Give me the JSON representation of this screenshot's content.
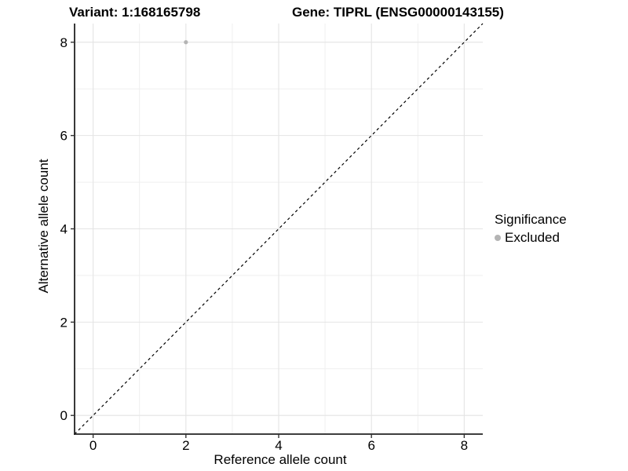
{
  "chart_data": {
    "type": "scatter",
    "title_left": "Variant: 1:168165798",
    "title_right": "Gene: TIPRL (ENSG00000143155)",
    "xlabel": "Reference allele count",
    "ylabel": "Alternative allele count",
    "xlim": [
      -0.4,
      8.4
    ],
    "ylim": [
      -0.4,
      8.4
    ],
    "x_breaks": [
      0,
      2,
      4,
      6,
      8
    ],
    "y_breaks": [
      0,
      2,
      4,
      6,
      8
    ],
    "x_minor_breaks": [
      1,
      3,
      5,
      7
    ],
    "y_minor_breaks": [
      1,
      3,
      5,
      7
    ],
    "grid": true,
    "points": [
      {
        "x": 2,
        "y": 8,
        "series": "Excluded"
      }
    ],
    "reference_line": {
      "kind": "identity",
      "slope": 1,
      "intercept": 0,
      "style": "dashed",
      "color": "#000000"
    },
    "legend": {
      "title": "Significance",
      "position": "right",
      "items": [
        {
          "label": "Excluded",
          "color": "#b4b4b4",
          "marker": "circle"
        }
      ]
    },
    "colors": {
      "point": "#b4b4b4",
      "grid_major": "#e4e4e4",
      "grid_minor": "#efefef",
      "axis_line": "#222222",
      "tick": "#333333",
      "text": "#000000",
      "background": "#ffffff"
    }
  }
}
